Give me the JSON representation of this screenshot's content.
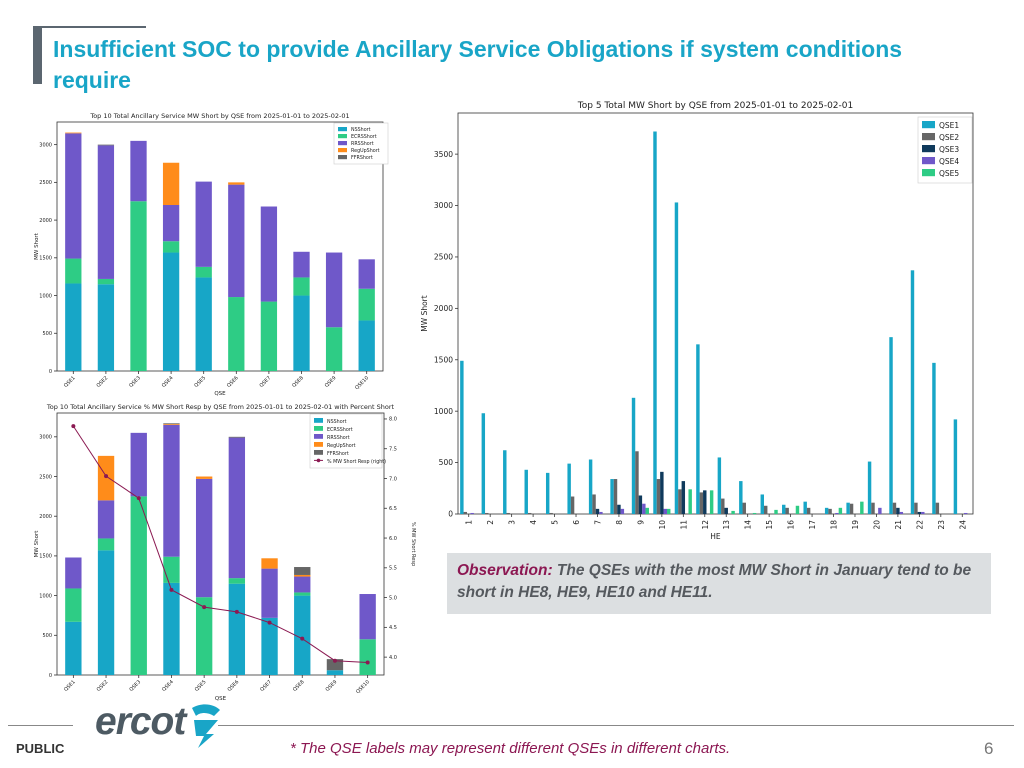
{
  "slide": {
    "title": "Insufficient SOC to provide Ancillary Service Obligations if system conditions require",
    "observation_label": "Observation:",
    "observation_text": " The QSEs with the most MW Short in January tend to be short in HE8, HE9, HE10 and HE11.",
    "footnote": "* The QSE labels may represent different QSEs in different charts.",
    "public_label": "PUBLIC",
    "logo_text": "ercot",
    "page_number": "6"
  },
  "chart_data": [
    {
      "type": "bar",
      "stacked": true,
      "title": "Top 10 Total Ancillary Service MW Short by QSE from 2025-01-01 to 2025-02-01",
      "xlabel": "QSE",
      "ylabel": "MW Short",
      "ylim": [
        0,
        3300
      ],
      "yticks": [
        0,
        500,
        1000,
        1500,
        2000,
        2500,
        3000
      ],
      "categories": [
        "QSE1",
        "QSE2",
        "QSE3",
        "QSE4",
        "QSE5",
        "QSE6",
        "QSE7",
        "QSE8",
        "QSE9",
        "QSE10"
      ],
      "legend_position": "top-right",
      "series": [
        {
          "name": "NSShort",
          "color": "#17a6c7",
          "values": [
            1160,
            1150,
            0,
            1570,
            1240,
            0,
            0,
            1000,
            0,
            670
          ]
        },
        {
          "name": "ECRSShort",
          "color": "#2ecc85",
          "values": [
            330,
            70,
            2250,
            150,
            140,
            980,
            920,
            240,
            580,
            420
          ]
        },
        {
          "name": "RRSShort",
          "color": "#6f58c9",
          "values": [
            1660,
            1770,
            800,
            480,
            1130,
            1490,
            1260,
            340,
            990,
            390
          ]
        },
        {
          "name": "RegUpShort",
          "color": "#ff8c1a",
          "values": [
            10,
            0,
            0,
            560,
            0,
            30,
            0,
            0,
            0,
            0
          ]
        },
        {
          "name": "FFRShort",
          "color": "#666666",
          "values": [
            0,
            10,
            0,
            0,
            0,
            0,
            0,
            0,
            0,
            0
          ]
        }
      ]
    },
    {
      "type": "bar",
      "stacked": true,
      "title": "Top 10 Total Ancillary Service % MW Short Resp by QSE from 2025-01-01 to 2025-02-01 with Percent Short",
      "xlabel": "QSE",
      "ylabel": "MW Short",
      "y2label": "% MW Short Resp",
      "ylim": [
        0,
        3300
      ],
      "y2lim": [
        3.7,
        8.1
      ],
      "yticks": [
        0,
        500,
        1000,
        1500,
        2000,
        2500,
        3000
      ],
      "y2ticks": [
        4.0,
        4.5,
        5.0,
        5.5,
        6.0,
        6.5,
        7.0,
        7.5,
        8.0
      ],
      "categories": [
        "QSE1",
        "QSE2",
        "QSE3",
        "QSE4",
        "QSE5",
        "QSE6",
        "QSE7",
        "QSE8",
        "QSE9",
        "QSE10"
      ],
      "legend_position": "top-right",
      "series": [
        {
          "name": "NSShort",
          "color": "#17a6c7",
          "values": [
            670,
            1570,
            0,
            1160,
            0,
            1150,
            720,
            1000,
            60,
            0
          ]
        },
        {
          "name": "ECRSShort",
          "color": "#2ecc85",
          "values": [
            420,
            150,
            2250,
            330,
            980,
            70,
            0,
            40,
            0,
            450
          ]
        },
        {
          "name": "RRSShort",
          "color": "#6f58c9",
          "values": [
            390,
            480,
            800,
            1660,
            1490,
            1770,
            620,
            200,
            0,
            570
          ]
        },
        {
          "name": "RegUpShort",
          "color": "#ff8c1a",
          "values": [
            0,
            560,
            0,
            10,
            30,
            0,
            130,
            20,
            0,
            0
          ]
        },
        {
          "name": "FFRShort",
          "color": "#666666",
          "values": [
            0,
            0,
            0,
            10,
            0,
            10,
            0,
            100,
            140,
            0
          ]
        }
      ],
      "line": {
        "name": "% MW Short Resp (right)",
        "color": "#8b1a52",
        "values": [
          7.88,
          7.04,
          6.67,
          5.13,
          4.84,
          4.76,
          4.58,
          4.31,
          3.94,
          3.91
        ]
      }
    },
    {
      "type": "bar",
      "grouped": true,
      "title": "Top 5 Total MW Short by QSE from 2025-01-01 to 2025-02-01",
      "xlabel": "HE",
      "ylabel": "MW Short",
      "ylim": [
        0,
        3900
      ],
      "yticks": [
        0,
        500,
        1000,
        1500,
        2000,
        2500,
        3000,
        3500
      ],
      "categories": [
        "1",
        "2",
        "3",
        "4",
        "5",
        "6",
        "7",
        "8",
        "9",
        "10",
        "11",
        "12",
        "13",
        "14",
        "15",
        "16",
        "17",
        "18",
        "19",
        "20",
        "21",
        "22",
        "23",
        "24"
      ],
      "legend_position": "top-right",
      "series": [
        {
          "name": "QSE1",
          "color": "#17a6c7",
          "values": [
            1490,
            980,
            620,
            430,
            400,
            490,
            530,
            340,
            1130,
            3720,
            3030,
            1650,
            550,
            320,
            190,
            90,
            120,
            60,
            110,
            510,
            1720,
            2370,
            1470,
            920
          ]
        },
        {
          "name": "QSE2",
          "color": "#666666",
          "values": [
            20,
            10,
            10,
            10,
            10,
            170,
            190,
            340,
            610,
            340,
            240,
            210,
            150,
            110,
            80,
            60,
            60,
            50,
            100,
            110,
            110,
            110,
            110,
            0
          ]
        },
        {
          "name": "QSE3",
          "color": "#0f3a5c",
          "values": [
            0,
            0,
            0,
            0,
            0,
            0,
            50,
            90,
            180,
            410,
            320,
            230,
            60,
            0,
            0,
            0,
            0,
            0,
            0,
            0,
            60,
            20,
            0,
            0
          ]
        },
        {
          "name": "QSE4",
          "color": "#6f58c9",
          "values": [
            10,
            0,
            0,
            0,
            0,
            0,
            20,
            50,
            100,
            50,
            0,
            0,
            0,
            0,
            0,
            0,
            0,
            10,
            0,
            60,
            20,
            20,
            0,
            10
          ]
        },
        {
          "name": "QSE5",
          "color": "#2ecc85",
          "values": [
            0,
            0,
            0,
            0,
            0,
            0,
            0,
            0,
            60,
            50,
            240,
            230,
            30,
            10,
            40,
            80,
            0,
            60,
            120,
            0,
            0,
            0,
            0,
            0
          ]
        }
      ]
    }
  ]
}
